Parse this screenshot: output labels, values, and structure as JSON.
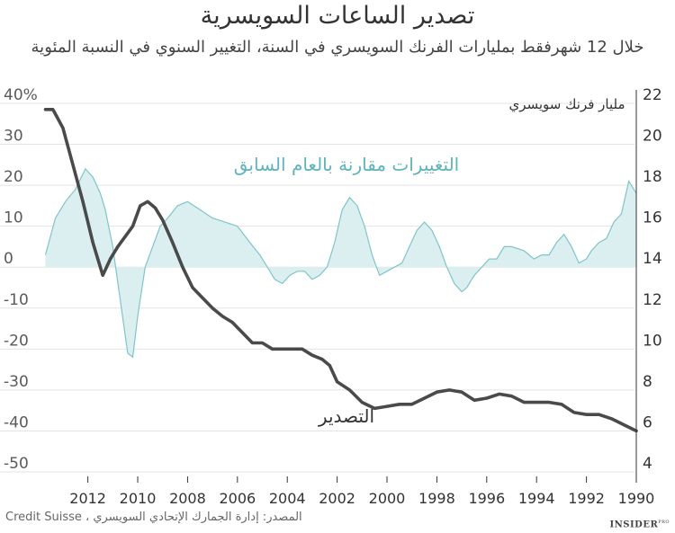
{
  "header": {
    "title": "تصدير الساعات السويسرية",
    "subtitle": "خلال 12 شهرفقط بمليارات الفرنك السويسري في السنة، التغيير السنوي في النسبة المئوية"
  },
  "footer": {
    "source": "المصدر: إدارة الجمارك الإتحادي السويسري ، Credit Suisse",
    "brand": "INSIDER",
    "brand_suffix": "PRO"
  },
  "chart_data": {
    "type": "line",
    "x_reversed": true,
    "xlim": [
      1990,
      2013.9
    ],
    "x_ticks": [
      2012,
      2010,
      2008,
      2006,
      2004,
      2002,
      2000,
      1998,
      1996,
      1994,
      1992,
      1990
    ],
    "left_axis": {
      "ylim": [
        -50,
        40
      ],
      "ticks": [
        40,
        30,
        20,
        10,
        0,
        -10,
        -20,
        -30,
        -40,
        -50
      ],
      "tick_labels": [
        "40%",
        "30",
        "20",
        "10",
        "0",
        "-10",
        "-20",
        "-30",
        "-40",
        "-50"
      ],
      "label": ""
    },
    "right_axis": {
      "ylim": [
        4,
        22
      ],
      "ticks": [
        22,
        20,
        18,
        16,
        14,
        12,
        10,
        8,
        6,
        4
      ],
      "tick_labels": [
        "22",
        "20",
        "18",
        "16",
        "14",
        "12",
        "10",
        "8",
        "6",
        "4"
      ],
      "label": "مليار فرنك سويسري"
    },
    "series": [
      {
        "name": "التصدير",
        "type": "line",
        "axis": "right",
        "color": "#4a4a4a",
        "x": [
          1990.0,
          1990.5,
          1991.0,
          1991.5,
          1992.0,
          1992.5,
          1993.0,
          1993.5,
          1994.0,
          1994.5,
          1995.0,
          1995.5,
          1996.0,
          1996.5,
          1997.0,
          1997.5,
          1998.0,
          1998.5,
          1999.0,
          1999.5,
          2000.0,
          2000.5,
          2001.0,
          2001.5,
          2002.0,
          2002.3,
          2002.6,
          2003.0,
          2003.4,
          2003.8,
          2004.2,
          2004.6,
          2005.0,
          2005.4,
          2005.8,
          2006.2,
          2006.6,
          2007.0,
          2007.4,
          2007.8,
          2008.2,
          2008.6,
          2009.0,
          2009.3,
          2009.6,
          2009.9,
          2010.2,
          2010.5,
          2010.8,
          2011.1,
          2011.4,
          2011.8,
          2012.2,
          2012.6,
          2013.0,
          2013.4,
          2013.7
        ],
        "y": [
          6.0,
          6.3,
          6.6,
          6.8,
          6.8,
          6.9,
          7.3,
          7.4,
          7.4,
          7.4,
          7.7,
          7.8,
          7.6,
          7.5,
          7.9,
          8.0,
          7.9,
          7.6,
          7.3,
          7.3,
          7.2,
          7.1,
          7.4,
          8.0,
          8.4,
          9.2,
          9.5,
          9.7,
          10.0,
          10.0,
          10.0,
          10.0,
          10.3,
          10.3,
          10.8,
          11.3,
          11.6,
          12.0,
          12.5,
          13.0,
          14.0,
          15.2,
          16.3,
          16.9,
          17.2,
          17.0,
          16.0,
          15.5,
          15.0,
          14.4,
          13.6,
          15.2,
          17.2,
          19.0,
          20.8,
          21.7,
          21.7
        ]
      },
      {
        "name": "التغييرات مقارنة بالعام السابق",
        "type": "area",
        "axis": "left",
        "color": "#7fc4ca",
        "fill": "#dbeff1",
        "x": [
          1990.0,
          1990.3,
          1990.6,
          1990.9,
          1991.2,
          1991.5,
          1991.8,
          1992.0,
          1992.3,
          1992.6,
          1992.9,
          1993.2,
          1993.5,
          1993.8,
          1994.1,
          1994.5,
          1995.0,
          1995.3,
          1995.6,
          1995.9,
          1996.2,
          1996.5,
          1996.8,
          1997.0,
          1997.3,
          1997.6,
          1997.9,
          1998.2,
          1998.5,
          1998.8,
          1999.1,
          1999.4,
          1999.7,
          2000.0,
          2000.3,
          2000.6,
          2000.9,
          2001.2,
          2001.5,
          2001.8,
          2002.1,
          2002.4,
          2002.7,
          2003.0,
          2003.3,
          2003.6,
          2003.9,
          2004.2,
          2004.5,
          2004.8,
          2005.1,
          2005.5,
          2006.0,
          2006.5,
          2007.0,
          2007.5,
          2008.0,
          2008.4,
          2008.8,
          2009.1,
          2009.4,
          2009.7,
          2010.0,
          2010.2,
          2010.4,
          2010.7,
          2011.0,
          2011.3,
          2011.5,
          2011.8,
          2012.1,
          2012.5,
          2012.9,
          2013.3,
          2013.7
        ],
        "y": [
          18.0,
          21.0,
          13.0,
          11.0,
          7.0,
          6.0,
          4.0,
          2.0,
          1.0,
          5.0,
          8.0,
          6.0,
          3.0,
          3.0,
          2.0,
          4.0,
          5.0,
          5.0,
          2.0,
          2.0,
          0.0,
          -2.0,
          -5.0,
          -6.0,
          -4.0,
          0.0,
          5.0,
          9.0,
          11.0,
          9.0,
          5.0,
          1.0,
          0.0,
          -1.0,
          -2.0,
          3.0,
          10.0,
          15.0,
          17.0,
          14.0,
          6.0,
          0.0,
          -2.0,
          -3.0,
          -1.0,
          -1.0,
          -2.0,
          -4.0,
          -3.0,
          0.0,
          3.0,
          6.0,
          10.0,
          11.0,
          12.0,
          14.0,
          16.0,
          15.0,
          12.0,
          10.0,
          5.0,
          0.0,
          -12.0,
          -22.0,
          -21.0,
          -8.0,
          5.0,
          14.0,
          18.0,
          22.0,
          24.0,
          19.0,
          16.0,
          12.0,
          3.0
        ]
      }
    ],
    "annotations": {
      "line_label": "التصدير",
      "area_label": "التغييرات مقارنة بالعام السابق"
    },
    "grid": true,
    "legend": "none"
  }
}
